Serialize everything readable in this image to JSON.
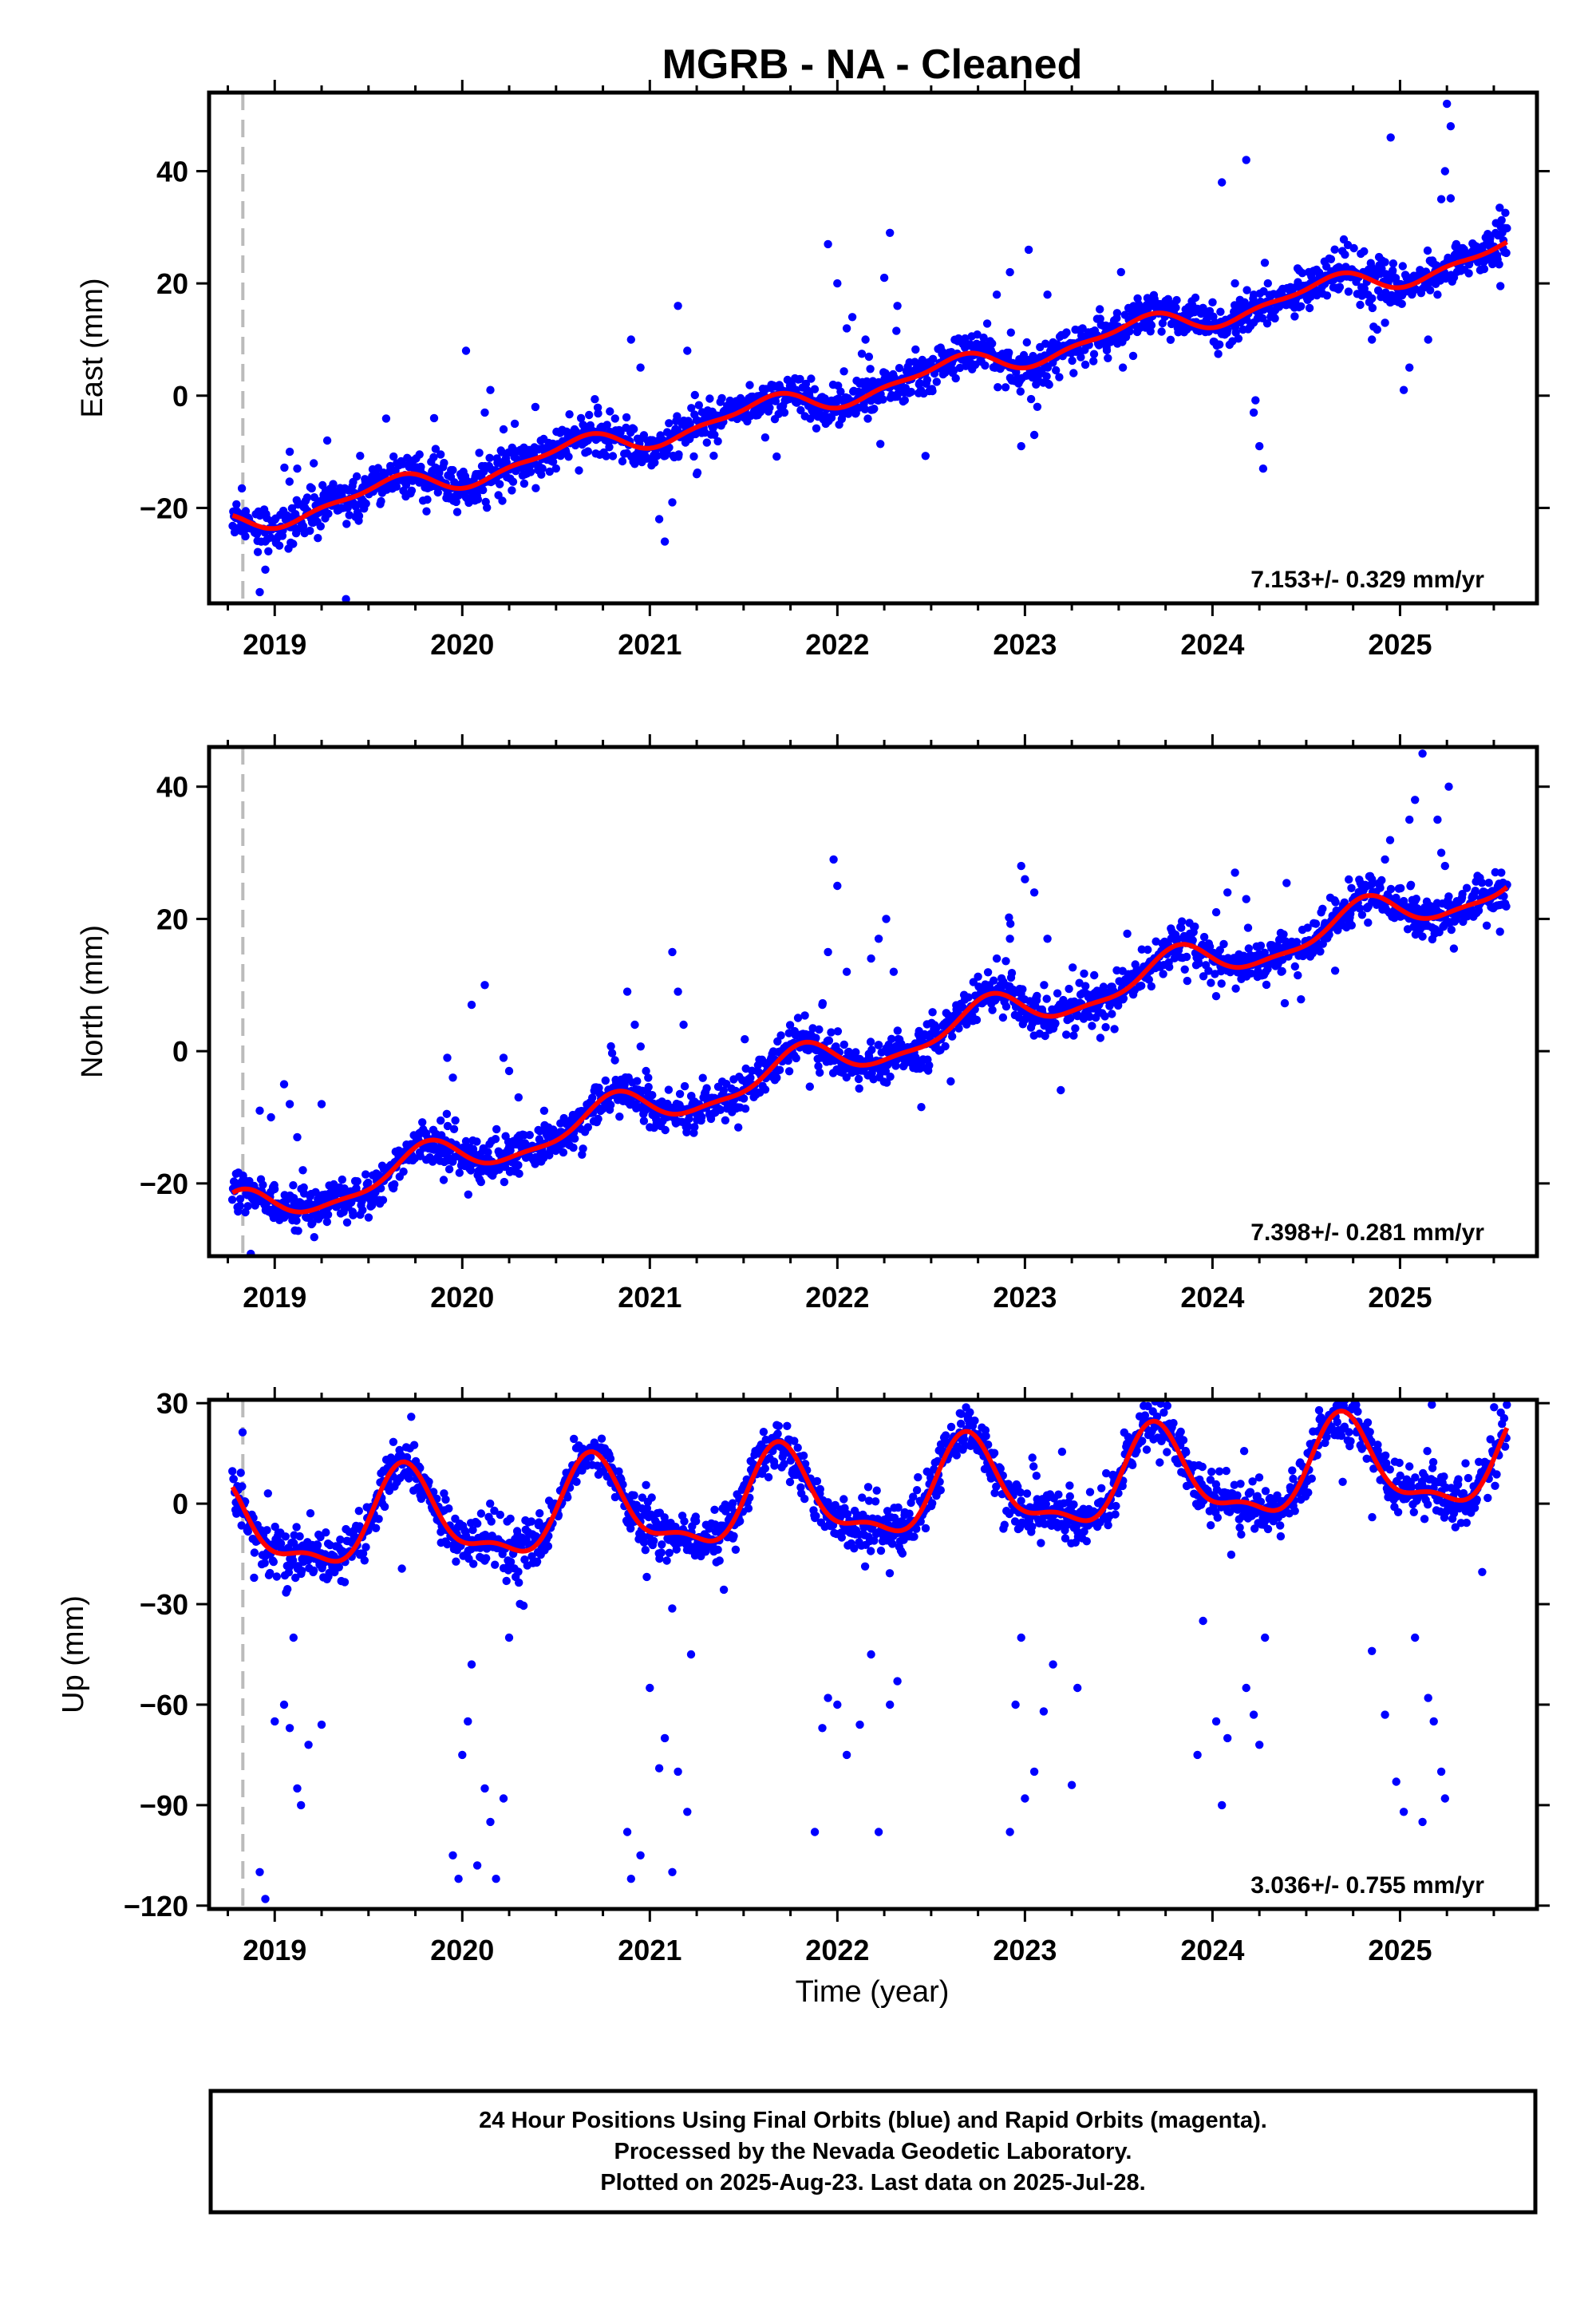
{
  "chart_data": {
    "title": "MGRB  - NA - Cleaned",
    "xlabel": "Time (year)",
    "xlim": [
      2018.65,
      2025.73
    ],
    "x_ticks": [
      2019,
      2020,
      2021,
      2022,
      2023,
      2024,
      2025
    ],
    "x_tick_labels": [
      "2019",
      "2020",
      "2021",
      "2022",
      "2023",
      "2024",
      "2025"
    ],
    "reference_line_x": 2018.83,
    "panels": [
      {
        "type": "scatter",
        "id": "east",
        "ylabel": "East (mm)",
        "ylim": [
          -37,
          54
        ],
        "y_ticks": [
          -20,
          0,
          20,
          40
        ],
        "y_tick_labels": [
          "−20",
          "0",
          "20",
          "40"
        ],
        "rate_label": "7.153+/- 0.329 mm/yr",
        "rate": 7.153,
        "intercept": -22.5,
        "seasonal": {
          "amp": 2.0,
          "phase": 0.35,
          "amp2": 0.8,
          "phase2": 0.1
        },
        "noise": 1.8,
        "outliers": [
          [
            2018.92,
            -35
          ],
          [
            2018.95,
            -31
          ],
          [
            2019.08,
            -10
          ],
          [
            2019.12,
            -13
          ],
          [
            2019.28,
            -8
          ],
          [
            2019.85,
            -4
          ],
          [
            2019.92,
            -18
          ],
          [
            2019.98,
            -16
          ],
          [
            2020.02,
            8
          ],
          [
            2020.12,
            -3
          ],
          [
            2020.15,
            1
          ],
          [
            2020.22,
            -6
          ],
          [
            2020.9,
            10
          ],
          [
            2020.95,
            5
          ],
          [
            2021.05,
            -22
          ],
          [
            2021.08,
            -26
          ],
          [
            2021.12,
            -19
          ],
          [
            2021.15,
            16
          ],
          [
            2021.2,
            8
          ],
          [
            2021.25,
            -14
          ],
          [
            2021.95,
            27
          ],
          [
            2022.0,
            20
          ],
          [
            2022.05,
            12
          ],
          [
            2022.08,
            14
          ],
          [
            2022.15,
            10
          ],
          [
            2022.25,
            21
          ],
          [
            2022.28,
            29
          ],
          [
            2022.32,
            16
          ],
          [
            2022.85,
            18
          ],
          [
            2022.92,
            22
          ],
          [
            2022.98,
            -9
          ],
          [
            2023.02,
            26
          ],
          [
            2023.05,
            -7
          ],
          [
            2023.12,
            18
          ],
          [
            2024.05,
            38
          ],
          [
            2024.12,
            20
          ],
          [
            2024.18,
            42
          ],
          [
            2024.22,
            -3
          ],
          [
            2024.25,
            -9
          ],
          [
            2024.27,
            -13
          ],
          [
            2024.22,
            18
          ],
          [
            2024.85,
            10
          ],
          [
            2024.92,
            13
          ],
          [
            2024.95,
            46
          ],
          [
            2025.02,
            1
          ],
          [
            2025.05,
            5
          ],
          [
            2025.15,
            10
          ],
          [
            2025.22,
            35
          ],
          [
            2025.24,
            40
          ],
          [
            2025.25,
            52
          ],
          [
            2025.27,
            48
          ],
          [
            2025.3,
            27
          ],
          [
            2025.2,
            18
          ]
        ]
      },
      {
        "type": "scatter",
        "id": "north",
        "ylabel": "North (mm)",
        "ylim": [
          -31,
          46
        ],
        "y_ticks": [
          -20,
          0,
          20,
          40
        ],
        "y_tick_labels": [
          "−20",
          "0",
          "20",
          "40"
        ],
        "rate_label": "7.398+/- 0.281 mm/yr",
        "rate": 7.398,
        "intercept": -24.5,
        "seasonal": {
          "amp": 2.8,
          "phase": 0.55,
          "amp2": 0.9,
          "phase2": 0.2
        },
        "noise": 1.5,
        "outliers": [
          [
            2018.92,
            -9
          ],
          [
            2018.98,
            -10
          ],
          [
            2019.05,
            -5
          ],
          [
            2019.08,
            -8
          ],
          [
            2019.12,
            -13
          ],
          [
            2019.15,
            -18
          ],
          [
            2019.25,
            -8
          ],
          [
            2019.92,
            -1
          ],
          [
            2019.95,
            -4
          ],
          [
            2020.05,
            7
          ],
          [
            2020.12,
            10
          ],
          [
            2020.22,
            -1
          ],
          [
            2020.25,
            -3
          ],
          [
            2020.3,
            -7
          ],
          [
            2020.88,
            9
          ],
          [
            2020.92,
            4
          ],
          [
            2020.98,
            -3
          ],
          [
            2021.12,
            15
          ],
          [
            2021.15,
            9
          ],
          [
            2021.18,
            4
          ],
          [
            2021.92,
            7
          ],
          [
            2021.95,
            15
          ],
          [
            2021.98,
            29
          ],
          [
            2022.0,
            25
          ],
          [
            2022.05,
            12
          ],
          [
            2022.18,
            14
          ],
          [
            2022.22,
            17
          ],
          [
            2022.26,
            20
          ],
          [
            2022.3,
            12
          ],
          [
            2022.85,
            14
          ],
          [
            2022.92,
            17
          ],
          [
            2022.98,
            28
          ],
          [
            2023.0,
            26
          ],
          [
            2023.05,
            24
          ],
          [
            2023.12,
            17
          ],
          [
            2024.02,
            21
          ],
          [
            2024.08,
            24
          ],
          [
            2024.12,
            27
          ],
          [
            2024.18,
            23
          ],
          [
            2024.85,
            26
          ],
          [
            2024.92,
            29
          ],
          [
            2025.05,
            35
          ],
          [
            2025.08,
            38
          ],
          [
            2025.12,
            45
          ],
          [
            2025.2,
            35
          ],
          [
            2025.22,
            30
          ],
          [
            2025.24,
            28
          ],
          [
            2025.26,
            40
          ]
        ]
      },
      {
        "type": "scatter",
        "id": "up",
        "ylabel": "Up (mm)",
        "ylim": [
          -121,
          31
        ],
        "y_ticks": [
          -120,
          -90,
          -60,
          -30,
          0,
          30
        ],
        "y_tick_labels": [
          "−120",
          "−90",
          "−60",
          "−30",
          "0",
          "30"
        ],
        "rate_label": "3.036+/- 0.755 mm/yr",
        "rate": 3.036,
        "intercept": -8.0,
        "seasonal": {
          "amp": 13.0,
          "phase": 0.45,
          "amp2": 5.0,
          "phase2": 0.05
        },
        "noise": 3.5,
        "outliers": [
          [
            2018.92,
            -110
          ],
          [
            2018.95,
            -118
          ],
          [
            2019.05,
            -60
          ],
          [
            2019.08,
            -67
          ],
          [
            2019.12,
            -85
          ],
          [
            2019.14,
            -90
          ],
          [
            2019.18,
            -72
          ],
          [
            2019.25,
            -66
          ],
          [
            2019.1,
            -40
          ],
          [
            2019.0,
            -65
          ],
          [
            2019.95,
            -105
          ],
          [
            2019.98,
            -112
          ],
          [
            2020.0,
            -75
          ],
          [
            2020.03,
            -65
          ],
          [
            2020.05,
            -48
          ],
          [
            2020.08,
            -108
          ],
          [
            2020.12,
            -85
          ],
          [
            2020.15,
            -95
          ],
          [
            2020.18,
            -112
          ],
          [
            2020.22,
            -88
          ],
          [
            2020.25,
            -40
          ],
          [
            2020.88,
            -98
          ],
          [
            2020.9,
            -112
          ],
          [
            2020.95,
            -105
          ],
          [
            2021.0,
            -55
          ],
          [
            2021.05,
            -79
          ],
          [
            2021.08,
            -70
          ],
          [
            2021.12,
            -110
          ],
          [
            2021.15,
            -80
          ],
          [
            2021.2,
            -92
          ],
          [
            2021.22,
            -45
          ],
          [
            2021.88,
            -98
          ],
          [
            2021.92,
            -67
          ],
          [
            2021.95,
            -58
          ],
          [
            2022.0,
            -60
          ],
          [
            2022.05,
            -75
          ],
          [
            2022.12,
            -66
          ],
          [
            2022.18,
            -45
          ],
          [
            2022.22,
            -98
          ],
          [
            2022.28,
            -60
          ],
          [
            2022.32,
            -53
          ],
          [
            2022.92,
            -98
          ],
          [
            2022.95,
            -60
          ],
          [
            2022.98,
            -40
          ],
          [
            2023.0,
            -88
          ],
          [
            2023.05,
            -80
          ],
          [
            2023.1,
            -62
          ],
          [
            2023.15,
            -48
          ],
          [
            2023.25,
            -84
          ],
          [
            2023.28,
            -55
          ],
          [
            2023.92,
            -75
          ],
          [
            2023.95,
            -35
          ],
          [
            2024.02,
            -65
          ],
          [
            2024.05,
            -90
          ],
          [
            2024.08,
            -70
          ],
          [
            2024.18,
            -55
          ],
          [
            2024.22,
            -63
          ],
          [
            2024.25,
            -72
          ],
          [
            2024.28,
            -40
          ],
          [
            2024.85,
            -44
          ],
          [
            2024.92,
            -63
          ],
          [
            2024.98,
            -83
          ],
          [
            2025.02,
            -92
          ],
          [
            2025.08,
            -40
          ],
          [
            2025.12,
            -95
          ],
          [
            2025.15,
            -58
          ],
          [
            2025.18,
            -65
          ],
          [
            2025.22,
            -80
          ],
          [
            2025.24,
            -88
          ]
        ]
      }
    ],
    "series": [
      {
        "role": "daily positions",
        "color": "#0000ff"
      },
      {
        "role": "model fit",
        "color": "#ff0000"
      }
    ],
    "footer_lines": [
      "24 Hour Positions Using Final Orbits (blue) and Rapid Orbits (magenta).",
      "Processed by the Nevada Geodetic Laboratory.",
      "Plotted on 2025-Aug-23. Last data on 2025-Jul-28."
    ]
  }
}
